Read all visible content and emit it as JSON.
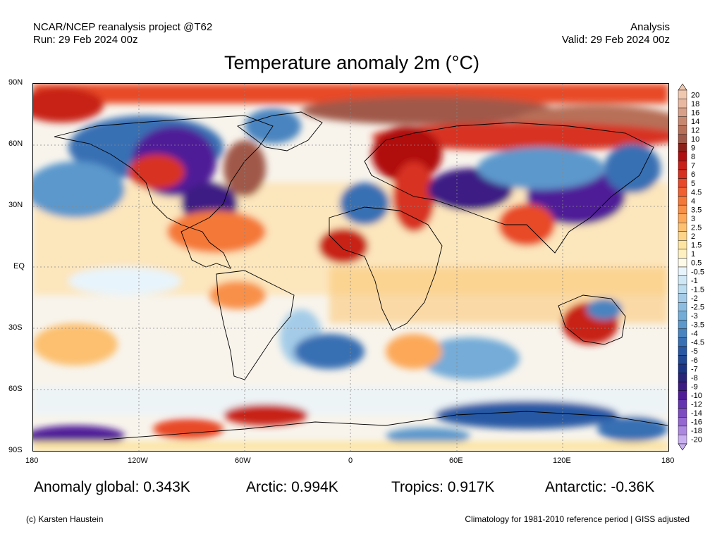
{
  "header": {
    "left_line1": "NCAR/NCEP reanalysis project @T62",
    "left_line2": "Run: 29 Feb 2024 00z",
    "right_line1": "Analysis",
    "right_line2": "Valid: 29 Feb 2024 00z"
  },
  "title": "Temperature anomaly 2m (°C)",
  "lat_labels": [
    "90N",
    "60N",
    "30N",
    "EQ",
    "30S",
    "60S",
    "90S"
  ],
  "lon_labels": [
    "180",
    "120W",
    "60W",
    "0",
    "60E",
    "120E",
    "180"
  ],
  "colorbar": {
    "labels": [
      "20",
      "18",
      "16",
      "14",
      "12",
      "10",
      "9",
      "8",
      "7",
      "6",
      "5",
      "4.5",
      "4",
      "3.5",
      "3",
      "2.5",
      "2",
      "1.5",
      "1",
      "0.5",
      "-0.5",
      "-1",
      "-1.5",
      "-2",
      "-2.5",
      "-3",
      "-3.5",
      "-4",
      "-4.5",
      "-5",
      "-6",
      "-7",
      "-8",
      "-9",
      "-10",
      "-12",
      "-14",
      "-16",
      "-18",
      "-20"
    ],
    "colors": [
      "#f0c8b0",
      "#e8b8a0",
      "#d8a088",
      "#c88870",
      "#b87058",
      "#a05848",
      "#8c2018",
      "#b01010",
      "#c82018",
      "#d83020",
      "#e84828",
      "#f06030",
      "#f47838",
      "#f89048",
      "#fca858",
      "#fcc070",
      "#fdd488",
      "#fde4a0",
      "#fef0c0",
      "#fefae8",
      "#e8f4fb",
      "#d0e8f6",
      "#bcdcf0",
      "#a4cce8",
      "#8cbce0",
      "#74acd8",
      "#5c98cc",
      "#4884c0",
      "#3870b4",
      "#2858a4",
      "#204894",
      "#1c3484",
      "#282478",
      "#3c1c84",
      "#501c98",
      "#6434b0",
      "#7c4cc0",
      "#9468d0",
      "#ac88e0",
      "#c8b0f0"
    ]
  },
  "stats": {
    "global": "Anomaly global: 0.343K",
    "arctic": "Arctic: 0.994K",
    "tropics": "Tropics: 0.917K",
    "antarctic": "Antarctic: -0.36K"
  },
  "footer": {
    "left": "(c) Karsten Haustein",
    "right": "Climatology for 1981-2010 reference period | GISS adjusted"
  }
}
